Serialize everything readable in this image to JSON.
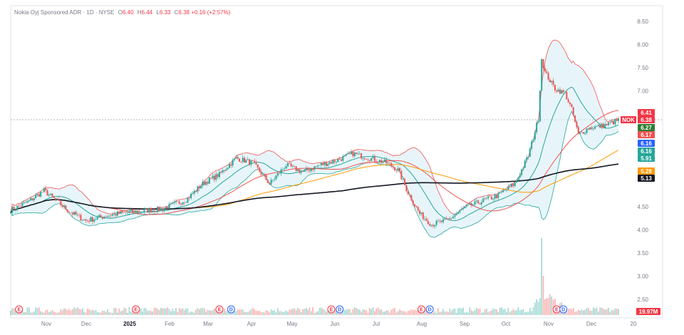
{
  "header": {
    "title": "Nokia Oyj Sponsored ADR · 1D · NYSE",
    "o_key": "O",
    "o": "6.40",
    "h_key": "H",
    "h": "6.44",
    "l_key": "L",
    "l": "6.33",
    "c_key": "C",
    "c": "6.38",
    "change": "+0.16 (+2.57%)"
  },
  "chart_data": {
    "type": "candlestick",
    "y_ticks": [
      "8.50",
      "8.00",
      "7.50",
      "7.00",
      "4.50",
      "4.00",
      "3.50",
      "3.00",
      "2.50"
    ],
    "ylim": [
      2.2,
      8.6
    ],
    "x_labels": [
      {
        "label": "Nov",
        "bold": false
      },
      {
        "label": "Dec",
        "bold": false
      },
      {
        "label": "2025",
        "bold": true
      },
      {
        "label": "Feb",
        "bold": false
      },
      {
        "label": "Mar",
        "bold": false
      },
      {
        "label": "Apr",
        "bold": false
      },
      {
        "label": "May",
        "bold": false
      },
      {
        "label": "Jun",
        "bold": false
      },
      {
        "label": "Jul",
        "bold": false
      },
      {
        "label": "Aug",
        "bold": false
      },
      {
        "label": "Sep",
        "bold": false
      },
      {
        "label": "Oct",
        "bold": false
      },
      {
        "label": "Nov",
        "bold": false
      },
      {
        "label": "Dec",
        "bold": false
      },
      {
        "label": "20",
        "bold": false
      }
    ],
    "close_anchors": [
      [
        0,
        4.43
      ],
      [
        10,
        4.6
      ],
      [
        20,
        4.85
      ],
      [
        35,
        4.4
      ],
      [
        45,
        4.2
      ],
      [
        60,
        4.33
      ],
      [
        75,
        4.4
      ],
      [
        90,
        4.45
      ],
      [
        105,
        4.65
      ],
      [
        115,
        5.0
      ],
      [
        125,
        5.2
      ],
      [
        135,
        5.55
      ],
      [
        145,
        5.45
      ],
      [
        155,
        5.0
      ],
      [
        165,
        5.4
      ],
      [
        175,
        5.25
      ],
      [
        185,
        5.4
      ],
      [
        195,
        5.5
      ],
      [
        205,
        5.65
      ],
      [
        215,
        5.55
      ],
      [
        225,
        5.45
      ],
      [
        232,
        5.3
      ],
      [
        238,
        4.8
      ],
      [
        245,
        4.35
      ],
      [
        252,
        4.12
      ],
      [
        262,
        4.22
      ],
      [
        272,
        4.48
      ],
      [
        282,
        4.62
      ],
      [
        292,
        4.75
      ],
      [
        302,
        5.0
      ],
      [
        310,
        5.6
      ],
      [
        316,
        6.4
      ],
      [
        318,
        7.7
      ],
      [
        320,
        7.4
      ],
      [
        326,
        7.05
      ],
      [
        332,
        6.95
      ],
      [
        336,
        6.6
      ],
      [
        340,
        6.05
      ],
      [
        346,
        6.2
      ],
      [
        355,
        6.25
      ],
      [
        365,
        6.38
      ]
    ],
    "n_candles": 365,
    "series": [
      {
        "name": "NOK",
        "role": "price",
        "last": "6.38",
        "color": "#f23645"
      },
      {
        "role": "ma",
        "last": "6.27",
        "color": "#2e7d32"
      },
      {
        "role": "ma",
        "last": "6.17",
        "color": "#ef5350"
      },
      {
        "role": "ma",
        "last": "6.16",
        "color": "#2962ff"
      },
      {
        "role": "bollinger",
        "last": "6.16",
        "color": "#26a69a"
      },
      {
        "role": "bollinger",
        "last": "5.91",
        "color": "#26a69a"
      },
      {
        "role": "ma",
        "last": "5.28",
        "color": "#ff9800"
      },
      {
        "role": "ma",
        "last": "5.13",
        "color": "#131722"
      },
      {
        "role": "upper",
        "last": "6.41",
        "color": "#f23645"
      }
    ],
    "volume_last": "19.97M",
    "events": [
      {
        "i": 5,
        "kind": "E"
      },
      {
        "i": 75,
        "kind": "E"
      },
      {
        "i": 125,
        "kind": "E"
      },
      {
        "i": 132,
        "kind": "D"
      },
      {
        "i": 192,
        "kind": "E"
      },
      {
        "i": 197,
        "kind": "D"
      },
      {
        "i": 246,
        "kind": "E"
      },
      {
        "i": 251,
        "kind": "D"
      },
      {
        "i": 327,
        "kind": "E"
      },
      {
        "i": 331,
        "kind": "D"
      }
    ],
    "colors": {
      "up": "#26a69a",
      "down": "#ef5350",
      "band_fill": "#d7eef7",
      "grid": "#f0f3fa"
    }
  }
}
